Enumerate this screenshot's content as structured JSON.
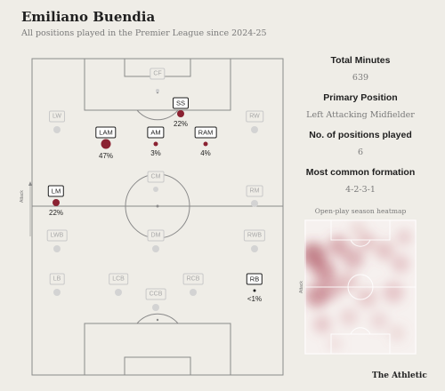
{
  "title": "Emiliano Buendia",
  "subtitle": "All positions played in the Premier League since 2024-25",
  "stats": [
    {
      "label": "Total Minutes",
      "value": "639"
    },
    {
      "label": "Primary Position",
      "value": "Left Attacking Midfielder"
    },
    {
      "label": "No. of positions played",
      "value": "6"
    },
    {
      "label": "Most common formation",
      "value": "4-2-3-1"
    }
  ],
  "heatmap_title": "Open-play season heatmap",
  "attack_label": "Attack",
  "brand": "The Athletic",
  "colors": {
    "accent": "#8b2232",
    "background": "#efede7",
    "pitch_line": "#8a8a8a",
    "inactive": "#c9c9c9"
  },
  "positions": [
    {
      "code": "CF",
      "active": false
    },
    {
      "code": "SS",
      "active": true,
      "pct": "22%"
    },
    {
      "code": "LW",
      "active": false
    },
    {
      "code": "RW",
      "active": false
    },
    {
      "code": "LAM",
      "active": true,
      "pct": "47%"
    },
    {
      "code": "AM",
      "active": true,
      "pct": "3%"
    },
    {
      "code": "RAM",
      "active": true,
      "pct": "4%"
    },
    {
      "code": "CM",
      "active": false
    },
    {
      "code": "LM",
      "active": true,
      "pct": "22%"
    },
    {
      "code": "RM",
      "active": false
    },
    {
      "code": "LWB",
      "active": false
    },
    {
      "code": "DM",
      "active": false
    },
    {
      "code": "RWB",
      "active": false
    },
    {
      "code": "LB",
      "active": false
    },
    {
      "code": "LCB",
      "active": false
    },
    {
      "code": "RCB",
      "active": false
    },
    {
      "code": "RB",
      "active": true,
      "pct": "<1%"
    },
    {
      "code": "CCB",
      "active": false
    }
  ]
}
